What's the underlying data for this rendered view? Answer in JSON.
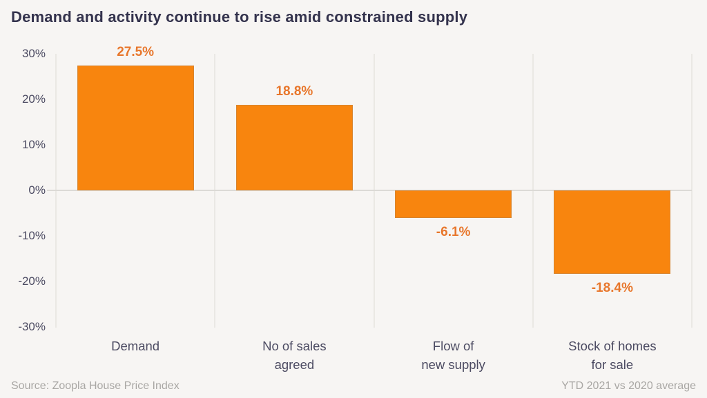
{
  "title": "Demand and activity continue to rise amid constrained supply",
  "footer": {
    "source": "Source: Zoopla House Price Index",
    "note": "YTD 2021 vs 2020 average"
  },
  "colors": {
    "background": "#F7F5F3",
    "bar": "#F8850E",
    "value_label": "#E8772C",
    "title_text": "#34334D",
    "axis_text": "#4C4B62",
    "gridline": "#EAE8E4",
    "zero_line": "#DCDAD6",
    "footer_text": "#A9A7A4"
  },
  "chart_data": {
    "type": "bar",
    "title": "Demand and activity continue to rise amid constrained supply",
    "categories": [
      "Demand",
      "No of sales\nagreed",
      "Flow of\nnew supply",
      "Stock of homes\nfor sale"
    ],
    "values": [
      27.5,
      18.8,
      -6.1,
      -18.4
    ],
    "value_labels": [
      "27.5%",
      "18.8%",
      "-6.1%",
      "-18.4%"
    ],
    "xlabel": "",
    "ylabel": "",
    "ylim": [
      -30,
      30
    ],
    "yticks": [
      30,
      20,
      10,
      0,
      -10,
      -20,
      -30
    ],
    "ytick_labels": [
      "30%",
      "20%",
      "10%",
      "0%",
      "-10%",
      "-20%",
      "-30%"
    ],
    "grid": "vertical category separators + zero baseline, no horizontal gridlines",
    "legend": "none",
    "source": "Source: Zoopla House Price Index",
    "note": "YTD 2021 vs 2020 average"
  }
}
